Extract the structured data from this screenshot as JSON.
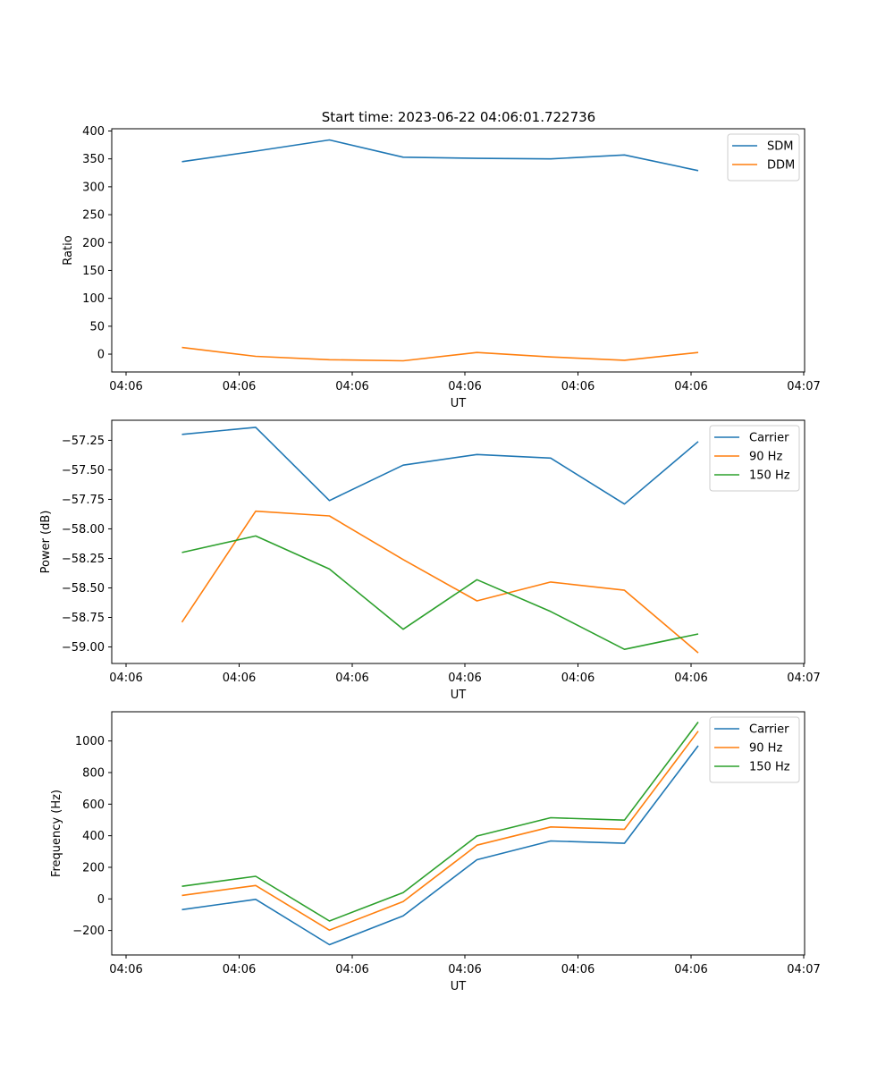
{
  "title": "Start time: 2023-06-22 04:06:01.722736",
  "chart_data": [
    {
      "type": "line",
      "xlabel": "UT",
      "ylabel": "Ratio",
      "x_tick_labels": [
        "04:06",
        "04:06",
        "04:06",
        "04:06",
        "04:06",
        "04:06",
        "04:06",
        "04:07"
      ],
      "y_ticks": [
        0,
        50,
        100,
        150,
        200,
        250,
        300,
        350,
        400
      ],
      "ylim": [
        -32,
        404
      ],
      "grid": false,
      "legend_position": "top-right",
      "series": [
        {
          "name": "SDM",
          "color": "#1f77b4",
          "values": [
            345,
            364,
            384,
            353,
            351,
            350,
            357,
            329
          ]
        },
        {
          "name": "DDM",
          "color": "#ff7f0e",
          "values": [
            12,
            -4,
            -10,
            -12,
            3,
            -5,
            -11,
            3
          ]
        }
      ]
    },
    {
      "type": "line",
      "xlabel": "UT",
      "ylabel": "Power (dB)",
      "x_tick_labels": [
        "04:06",
        "04:06",
        "04:06",
        "04:06",
        "04:06",
        "04:06",
        "04:06",
        "04:07"
      ],
      "y_ticks": [
        -59.0,
        -58.75,
        -58.5,
        -58.25,
        -58.0,
        -57.75,
        -57.5,
        -57.25
      ],
      "y_tick_labels": [
        "−59.00",
        "−58.75",
        "−58.50",
        "−58.25",
        "−58.00",
        "−57.75",
        "−57.50",
        "−57.25"
      ],
      "ylim": [
        -59.14,
        -57.08
      ],
      "grid": false,
      "legend_position": "top-right",
      "series": [
        {
          "name": "Carrier",
          "color": "#1f77b4",
          "values": [
            -57.2,
            -57.14,
            -57.76,
            -57.46,
            -57.37,
            -57.4,
            -57.79,
            -57.26
          ]
        },
        {
          "name": "90 Hz",
          "color": "#ff7f0e",
          "values": [
            -58.79,
            -57.85,
            -57.89,
            -58.26,
            -58.61,
            -58.45,
            -58.52,
            -59.05
          ]
        },
        {
          "name": "150 Hz",
          "color": "#2ca02c",
          "values": [
            -58.2,
            -58.06,
            -58.34,
            -58.85,
            -58.43,
            -58.7,
            -59.02,
            -58.89
          ]
        }
      ]
    },
    {
      "type": "line",
      "xlabel": "UT",
      "ylabel": "Frequency (Hz)",
      "x_tick_labels": [
        "04:06",
        "04:06",
        "04:06",
        "04:06",
        "04:06",
        "04:06",
        "04:06",
        "04:07"
      ],
      "y_ticks": [
        -200,
        0,
        200,
        400,
        600,
        800,
        1000
      ],
      "y_tick_labels": [
        "−200",
        "0",
        "200",
        "400",
        "600",
        "800",
        "1000"
      ],
      "ylim": [
        -355,
        1185
      ],
      "grid": false,
      "legend_position": "top-right",
      "series": [
        {
          "name": "Carrier",
          "color": "#1f77b4",
          "values": [
            -68,
            -3,
            -290,
            -107,
            248,
            367,
            352,
            970
          ]
        },
        {
          "name": "90 Hz",
          "color": "#ff7f0e",
          "values": [
            22,
            85,
            -198,
            -17,
            340,
            456,
            441,
            1062
          ]
        },
        {
          "name": "150 Hz",
          "color": "#2ca02c",
          "values": [
            80,
            143,
            -140,
            40,
            398,
            514,
            499,
            1120
          ]
        }
      ]
    }
  ]
}
